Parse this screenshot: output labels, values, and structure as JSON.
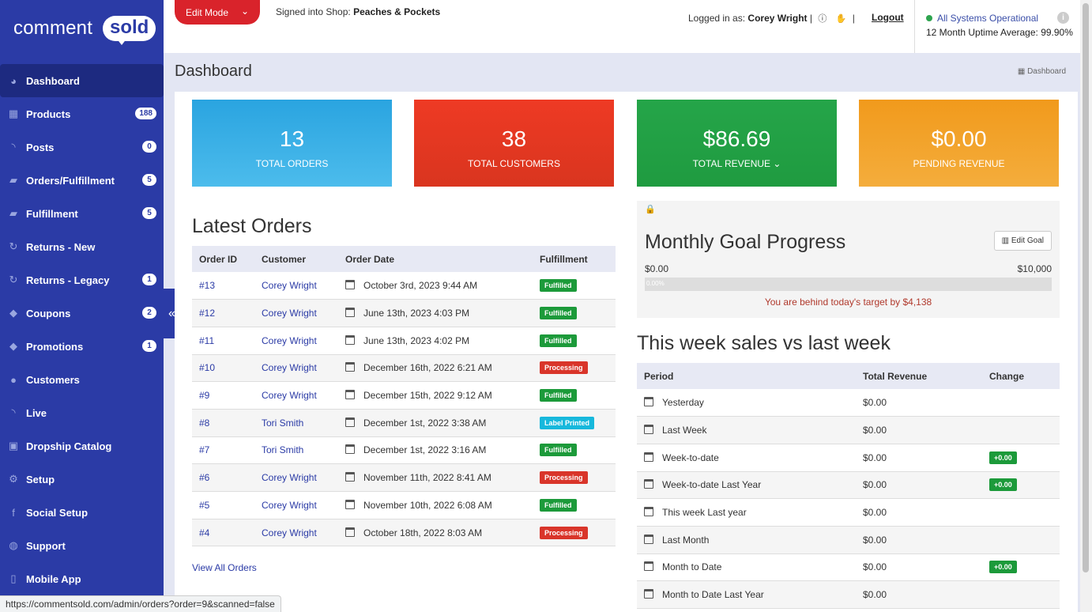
{
  "brand": {
    "left": "comment",
    "right": "sold"
  },
  "sidebar": {
    "items": [
      {
        "label": "Dashboard",
        "icon": "dashboard-icon",
        "badge": ""
      },
      {
        "label": "Products",
        "icon": "grid-icon",
        "badge": "188"
      },
      {
        "label": "Posts",
        "icon": "rss-icon",
        "badge": "0"
      },
      {
        "label": "Orders/Fulfillment",
        "icon": "truck-icon",
        "badge": "5"
      },
      {
        "label": "Fulfillment",
        "icon": "truck-icon",
        "badge": "5"
      },
      {
        "label": "Returns - New",
        "icon": "refresh-icon",
        "badge": ""
      },
      {
        "label": "Returns - Legacy",
        "icon": "refresh-icon",
        "badge": "1"
      },
      {
        "label": "Coupons",
        "icon": "tag-icon",
        "badge": "2"
      },
      {
        "label": "Promotions",
        "icon": "tag-icon",
        "badge": "1"
      },
      {
        "label": "Customers",
        "icon": "user-icon",
        "badge": ""
      },
      {
        "label": "Live",
        "icon": "rss-icon",
        "badge": ""
      },
      {
        "label": "Dropship Catalog",
        "icon": "catalog-icon",
        "badge": ""
      },
      {
        "label": "Setup",
        "icon": "gears-icon",
        "badge": ""
      },
      {
        "label": "Social Setup",
        "icon": "facebook-icon",
        "badge": ""
      },
      {
        "label": "Support",
        "icon": "chat-icon",
        "badge": ""
      },
      {
        "label": "Mobile App",
        "icon": "mobile-icon",
        "badge": ""
      }
    ]
  },
  "topbar": {
    "edit_mode": "Edit Mode",
    "signed_prefix": "Signed into Shop:",
    "shop": "Peaches & Pockets",
    "logged_prefix": "Logged in as:",
    "user": "Corey Wright",
    "logout": "Logout",
    "status": "All Systems Operational",
    "uptime": "12 Month Uptime Average: 99.90%"
  },
  "page": {
    "title": "Dashboard",
    "breadcrumb": "Dashboard"
  },
  "stats": [
    {
      "value": "13",
      "label": "TOTAL ORDERS"
    },
    {
      "value": "38",
      "label": "TOTAL CUSTOMERS"
    },
    {
      "value": "$86.69",
      "label": "TOTAL REVENUE"
    },
    {
      "value": "$0.00",
      "label": "PENDING REVENUE"
    }
  ],
  "orders": {
    "title": "Latest Orders",
    "columns": [
      "Order ID",
      "Customer",
      "Order Date",
      "Fulfillment"
    ],
    "rows": [
      {
        "id": "#13",
        "customer": "Corey Wright",
        "date": "October 3rd, 2023 9:44 AM",
        "status": "Fulfilled"
      },
      {
        "id": "#12",
        "customer": "Corey Wright",
        "date": "June 13th, 2023 4:03 PM",
        "status": "Fulfilled"
      },
      {
        "id": "#11",
        "customer": "Corey Wright",
        "date": "June 13th, 2023 4:02 PM",
        "status": "Fulfilled"
      },
      {
        "id": "#10",
        "customer": "Corey Wright",
        "date": "December 16th, 2022 6:21 AM",
        "status": "Processing"
      },
      {
        "id": "#9",
        "customer": "Corey Wright",
        "date": "December 15th, 2022 9:12 AM",
        "status": "Fulfilled"
      },
      {
        "id": "#8",
        "customer": "Tori Smith",
        "date": "December 1st, 2022 3:38 AM",
        "status": "Label Printed"
      },
      {
        "id": "#7",
        "customer": "Tori Smith",
        "date": "December 1st, 2022 3:16 AM",
        "status": "Fulfilled"
      },
      {
        "id": "#6",
        "customer": "Corey Wright",
        "date": "November 11th, 2022 8:41 AM",
        "status": "Processing"
      },
      {
        "id": "#5",
        "customer": "Corey Wright",
        "date": "November 10th, 2022 6:08 AM",
        "status": "Fulfilled"
      },
      {
        "id": "#4",
        "customer": "Corey Wright",
        "date": "October 18th, 2022 8:03 AM",
        "status": "Processing"
      }
    ],
    "view_all": "View All Orders"
  },
  "goal": {
    "title": "Monthly Goal Progress",
    "edit": "Edit Goal",
    "min": "$0.00",
    "max": "$10,000",
    "percent": "0.00%",
    "progress": 0,
    "message": "You are behind today's target by $4,138"
  },
  "sales": {
    "title": "This week sales vs last week",
    "columns": [
      "Period",
      "Total Revenue",
      "Change"
    ],
    "rows": [
      {
        "period": "Yesterday",
        "revenue": "$0.00",
        "change": ""
      },
      {
        "period": "Last Week",
        "revenue": "$0.00",
        "change": ""
      },
      {
        "period": "Week-to-date",
        "revenue": "$0.00",
        "change": "+0.00"
      },
      {
        "period": "Week-to-date Last Year",
        "revenue": "$0.00",
        "change": "+0.00"
      },
      {
        "period": "This week Last year",
        "revenue": "$0.00",
        "change": ""
      },
      {
        "period": "Last Month",
        "revenue": "$0.00",
        "change": ""
      },
      {
        "period": "Month to Date",
        "revenue": "$0.00",
        "change": "+0.00"
      },
      {
        "period": "Month to Date Last Year",
        "revenue": "$0.00",
        "change": ""
      }
    ]
  },
  "status_url": "https://commentsold.com/admin/orders?order=9&scanned=false"
}
